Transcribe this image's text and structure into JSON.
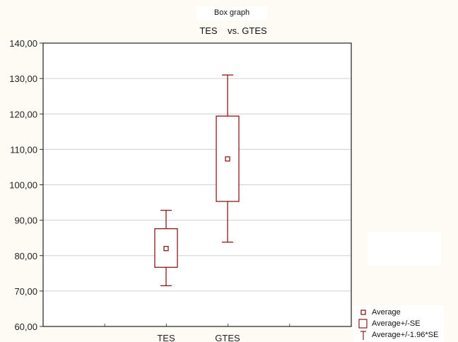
{
  "chart_data": {
    "type": "box",
    "title": "Box graph",
    "subtitle": "TES    vs. GTES",
    "categories": [
      "TES",
      "GTES"
    ],
    "series": [
      {
        "category": "TES",
        "average": 82.0,
        "se_low": 76.7,
        "se_high": 87.6,
        "ci_low": 71.5,
        "ci_high": 92.8
      },
      {
        "category": "GTES",
        "average": 107.3,
        "se_low": 95.3,
        "se_high": 119.4,
        "ci_low": 83.8,
        "ci_high": 131.0
      }
    ],
    "y_ticks": [
      "140,00",
      "130,00",
      "120,00",
      "110,00",
      "100,00",
      "90,00",
      "80,00",
      "70,00",
      "60,00"
    ],
    "ylim": [
      60,
      140
    ],
    "grid": true,
    "legend_position": "bottom-right",
    "legend": [
      "Average",
      "Average+/-SE",
      "Average+/-1.96*SE"
    ],
    "color": "#8b1a1a"
  }
}
